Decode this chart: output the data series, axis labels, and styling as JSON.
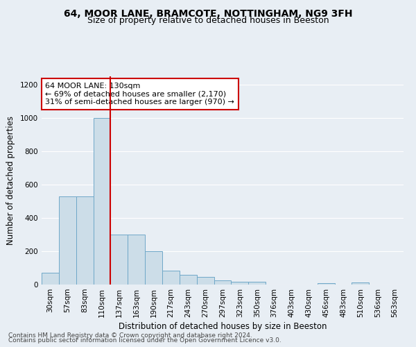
{
  "title1": "64, MOOR LANE, BRAMCOTE, NOTTINGHAM, NG9 3FH",
  "title2": "Size of property relative to detached houses in Beeston",
  "xlabel": "Distribution of detached houses by size in Beeston",
  "ylabel": "Number of detached properties",
  "bar_labels": [
    "30sqm",
    "57sqm",
    "83sqm",
    "110sqm",
    "137sqm",
    "163sqm",
    "190sqm",
    "217sqm",
    "243sqm",
    "270sqm",
    "297sqm",
    "323sqm",
    "350sqm",
    "376sqm",
    "403sqm",
    "430sqm",
    "456sqm",
    "483sqm",
    "510sqm",
    "536sqm",
    "563sqm"
  ],
  "bar_values": [
    70,
    530,
    530,
    1000,
    300,
    300,
    200,
    85,
    60,
    45,
    25,
    18,
    18,
    0,
    0,
    0,
    10,
    0,
    12,
    0,
    0
  ],
  "bar_color": "#ccdde8",
  "bar_edgecolor": "#6fa8c8",
  "red_line_x": 3.5,
  "annotation_text": "64 MOOR LANE: 130sqm\n← 69% of detached houses are smaller (2,170)\n31% of semi-detached houses are larger (970) →",
  "annotation_box_color": "#ffffff",
  "annotation_edge_color": "#cc0000",
  "red_line_color": "#cc0000",
  "footnote1": "Contains HM Land Registry data © Crown copyright and database right 2024.",
  "footnote2": "Contains public sector information licensed under the Open Government Licence v3.0.",
  "ylim": [
    0,
    1250
  ],
  "yticks": [
    0,
    200,
    400,
    600,
    800,
    1000,
    1200
  ],
  "bg_color": "#e8eef4",
  "grid_color": "#ffffff",
  "title1_fontsize": 10,
  "title2_fontsize": 9,
  "xlabel_fontsize": 8.5,
  "ylabel_fontsize": 8.5,
  "tick_fontsize": 7.5,
  "annot_fontsize": 8,
  "footnote_fontsize": 6.5
}
